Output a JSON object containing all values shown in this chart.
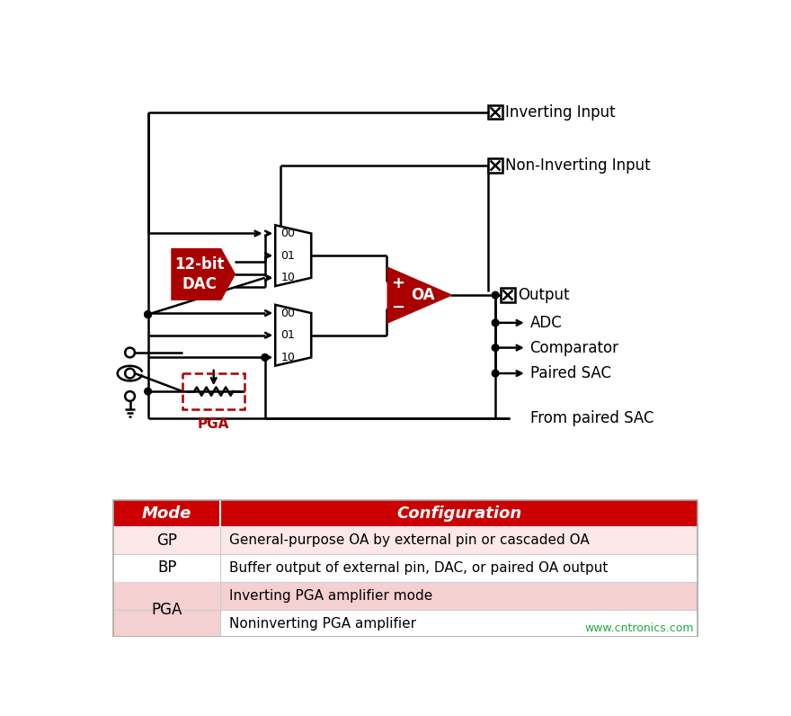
{
  "bg_color": "#ffffff",
  "red_color": "#aa0000",
  "table_header_red": "#cc0000",
  "table_row_pink1": "#fce8e8",
  "table_row_white": "#ffffff",
  "table_row_pink2": "#f5d0d0",
  "dac_label": "12-bit\nDAC",
  "oa_plus": "+",
  "oa_minus": "−",
  "oa_text": "OA",
  "pga_label": "PGA",
  "label_inv": "Inverting Input",
  "label_noninv": "Non-Inverting Input",
  "label_output": "Output",
  "label_adc": "ADC",
  "label_comp": "Comparator",
  "label_paired": "Paired SAC",
  "label_from": "From paired SAC",
  "mux_labels": [
    "00",
    "01",
    "10"
  ],
  "table_col1_header": "Mode",
  "table_col2_header": "Configuration",
  "table_rows": [
    [
      "GP",
      "General-purpose OA by external pin or cascaded OA"
    ],
    [
      "BP",
      "Buffer output of external pin, DAC, or paired OA output"
    ],
    [
      "PGA",
      "Inverting PGA amplifier mode"
    ],
    [
      "",
      "Noninverting PGA amplifier"
    ]
  ],
  "website": "www.cntronics.com"
}
